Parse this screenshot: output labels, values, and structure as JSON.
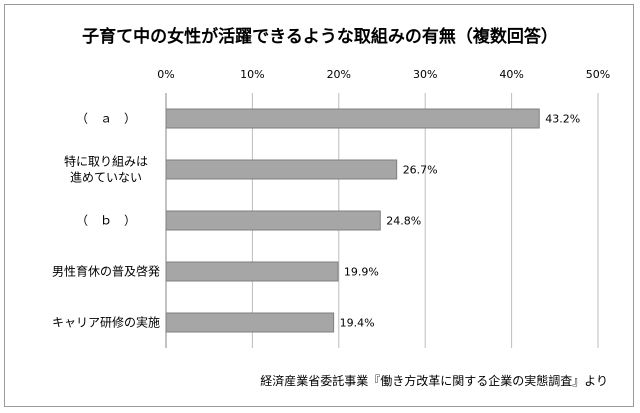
{
  "chart_data": {
    "type": "bar",
    "orientation": "horizontal",
    "title": "子育て中の女性が活躍できるような取組みの有無（複数回答）",
    "source": "経済産業省委託事業『働き方改革に関する企業の実態調査』より",
    "categories": [
      [
        "（　ａ　）"
      ],
      [
        "特に取り組みは",
        "進めていない"
      ],
      [
        "（　ｂ　）"
      ],
      [
        "男性育休の普及啓発"
      ],
      [
        "キャリア研修の実施"
      ]
    ],
    "values": [
      43.2,
      26.7,
      24.8,
      19.9,
      19.4
    ],
    "value_labels": [
      "43.2%",
      "26.7%",
      "24.8%",
      "19.9%",
      "19.4%"
    ],
    "xlim": [
      0,
      50
    ],
    "ticks": [
      "0%",
      "10%",
      "20%",
      "30%",
      "40%",
      "50%"
    ],
    "tick_values": [
      0,
      10,
      20,
      30,
      40,
      50
    ],
    "grid": true,
    "bar_color": "#a6a6a6",
    "bar_border": "#7f7f7f",
    "grid_color": "#bdbdbd"
  }
}
